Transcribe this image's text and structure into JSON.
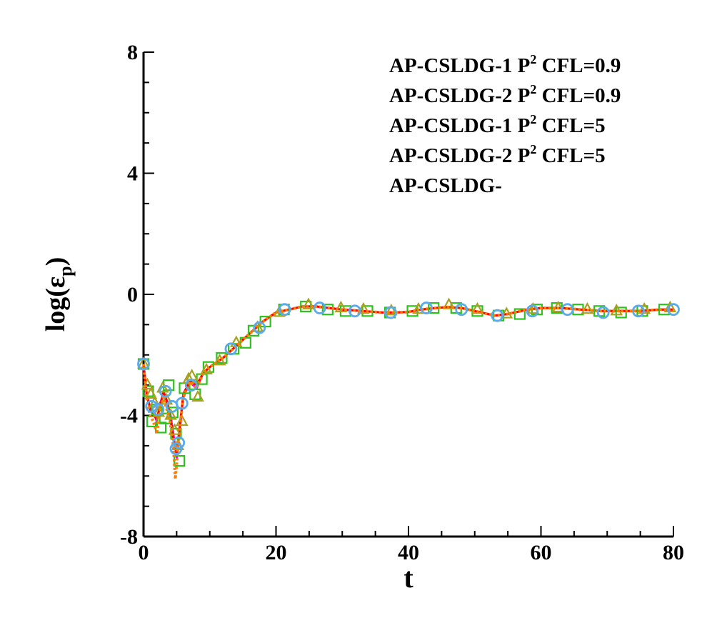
{
  "chart_data": {
    "type": "line",
    "xlabel": "t",
    "ylabel": "log(ε",
    "ylabel_sub": "p",
    "ylabel_close": ")",
    "xlim": [
      0,
      80
    ],
    "ylim": [
      -8,
      8
    ],
    "xticks": [
      0,
      20,
      40,
      60,
      80
    ],
    "xtick_labels": [
      "0",
      "20",
      "40",
      "60",
      "80"
    ],
    "yticks": [
      -8,
      -4,
      0,
      4,
      8
    ],
    "ytick_labels": [
      "-8",
      "-4",
      "0",
      "4",
      "8"
    ],
    "grid": false,
    "legend_position": "top-right",
    "series": [
      {
        "name": "AP-CSLDG-1 P2 CFL=0.9",
        "legend_parts": [
          "AP-CSLDG-1 P",
          "2",
          " CFL=0.9"
        ],
        "color": "#ff00ff",
        "style": "solid",
        "marker": "none",
        "x": [
          0,
          0.5,
          1,
          1.5,
          2,
          2.5,
          3,
          3.5,
          4,
          4.5,
          5,
          5.5,
          6,
          7,
          8,
          9,
          10,
          12,
          14,
          16,
          18,
          20,
          22,
          24,
          26,
          28,
          30,
          33,
          36,
          38,
          40,
          42,
          44,
          46,
          48,
          50,
          53,
          55,
          58,
          60,
          63,
          66,
          69,
          72,
          75,
          78,
          80
        ],
        "y": [
          -2.3,
          -3.4,
          -3.7,
          -3.9,
          -4.2,
          -3.6,
          -3.3,
          -3.6,
          -3.9,
          -4.6,
          -5.4,
          -4.4,
          -3.4,
          -2.9,
          -3.1,
          -2.6,
          -2.4,
          -2.1,
          -1.7,
          -1.3,
          -0.9,
          -0.6,
          -0.5,
          -0.4,
          -0.4,
          -0.45,
          -0.5,
          -0.55,
          -0.6,
          -0.6,
          -0.58,
          -0.5,
          -0.45,
          -0.42,
          -0.45,
          -0.55,
          -0.7,
          -0.65,
          -0.5,
          -0.45,
          -0.45,
          -0.5,
          -0.55,
          -0.55,
          -0.55,
          -0.5,
          -0.5
        ]
      },
      {
        "name": "AP-CSLDG-2 P2 CFL=0.9",
        "legend_parts": [
          "AP-CSLDG-2 P",
          "2",
          " CFL=0.9"
        ],
        "color": "#ff0000",
        "style": "solid",
        "marker": "none",
        "x": [
          0,
          0.5,
          1,
          1.5,
          2,
          2.5,
          3,
          3.5,
          4,
          4.5,
          5,
          5.5,
          6,
          7,
          8,
          9,
          10,
          12,
          14,
          16,
          18,
          20,
          22,
          24,
          26,
          28,
          30,
          33,
          36,
          38,
          40,
          42,
          44,
          46,
          48,
          50,
          53,
          55,
          58,
          60,
          63,
          66,
          69,
          72,
          75,
          78,
          80
        ],
        "y": [
          -2.3,
          -3.3,
          -3.8,
          -4.0,
          -4.1,
          -3.7,
          -3.2,
          -3.5,
          -4.0,
          -4.8,
          -5.2,
          -4.3,
          -3.3,
          -2.85,
          -3.0,
          -2.6,
          -2.4,
          -2.1,
          -1.7,
          -1.3,
          -0.9,
          -0.6,
          -0.5,
          -0.4,
          -0.4,
          -0.45,
          -0.5,
          -0.55,
          -0.6,
          -0.6,
          -0.58,
          -0.5,
          -0.45,
          -0.42,
          -0.45,
          -0.55,
          -0.7,
          -0.65,
          -0.5,
          -0.45,
          -0.45,
          -0.5,
          -0.55,
          -0.55,
          -0.55,
          -0.5,
          -0.5
        ]
      },
      {
        "name": "AP-CSLDG-1 P2 CFL=5",
        "legend_parts": [
          "AP-CSLDG-1 P",
          "2",
          " CFL=5"
        ],
        "color": "#2ec21e",
        "style": "none",
        "marker": "square",
        "x": [
          0,
          0.7,
          1.3,
          2,
          2.6,
          3.2,
          3.8,
          4.4,
          4.9,
          5.4,
          6.2,
          7.8,
          8.8,
          9.8,
          11.8,
          13.6,
          15.4,
          16.6,
          18.4,
          21.2,
          24.5,
          27.8,
          30.5,
          33.8,
          37.2,
          40.6,
          43.8,
          47.2,
          50.4,
          53.6,
          56.8,
          59.4,
          62.4,
          65.6,
          68.8,
          72.1,
          75.3,
          78.6
        ],
        "y": [
          -2.3,
          -3.2,
          -4.2,
          -3.8,
          -4.4,
          -4.1,
          -3.0,
          -3.9,
          -4.6,
          -5.5,
          -3.1,
          -3.3,
          -2.8,
          -2.4,
          -2.1,
          -1.8,
          -1.6,
          -1.2,
          -0.9,
          -0.5,
          -0.4,
          -0.5,
          -0.55,
          -0.55,
          -0.6,
          -0.55,
          -0.45,
          -0.45,
          -0.55,
          -0.7,
          -0.65,
          -0.5,
          -0.45,
          -0.5,
          -0.55,
          -0.6,
          -0.55,
          -0.5
        ]
      },
      {
        "name": "AP-CSLDG-2 P2 CFL=5",
        "legend_parts": [
          "AP-CSLDG-2 P",
          "2",
          " CFL=5"
        ],
        "color": "#a8a020",
        "style": "none",
        "marker": "triangle",
        "x": [
          0,
          0.6,
          1.1,
          1.7,
          2.3,
          2.9,
          3.5,
          4.1,
          4.7,
          5.2,
          5.8,
          6.8,
          7.3,
          8.2,
          9.5,
          11.5,
          14.0,
          17.2,
          20.5,
          24.9,
          29.8,
          33.2,
          37.4,
          41.5,
          46.1,
          50.4,
          54.8,
          58.8,
          62.6,
          67.0,
          71.4,
          75.6,
          79.5
        ],
        "y": [
          -2.3,
          -3.0,
          -3.3,
          -3.6,
          -3.9,
          -3.1,
          -3.5,
          -4.0,
          -4.5,
          -5.0,
          -4.2,
          -2.8,
          -2.7,
          -3.4,
          -2.5,
          -2.2,
          -1.6,
          -1.1,
          -0.6,
          -0.35,
          -0.45,
          -0.5,
          -0.55,
          -0.5,
          -0.35,
          -0.5,
          -0.65,
          -0.5,
          -0.45,
          -0.5,
          -0.55,
          -0.5,
          -0.45
        ]
      },
      {
        "name": "AP-CSLDG-",
        "legend_parts": [
          "AP-CSLDG-",
          "",
          ""
        ],
        "color": "#ff8000",
        "style": "dotted",
        "marker": "none",
        "x": [
          0,
          0.5,
          1,
          1.5,
          2,
          2.5,
          3,
          3.5,
          4,
          4.5,
          4.8,
          5,
          5.2,
          5.5,
          6,
          7,
          8,
          9,
          10,
          12,
          14,
          16,
          18,
          20,
          22,
          24,
          26,
          28,
          30,
          33,
          36,
          38,
          40,
          42,
          44,
          46,
          48,
          50,
          53,
          55,
          58,
          60,
          63,
          66,
          69,
          72,
          75,
          78,
          80
        ],
        "y": [
          -2.3,
          -3.5,
          -4.0,
          -4.2,
          -4.6,
          -3.8,
          -3.4,
          -3.8,
          -4.2,
          -5.0,
          -6.1,
          -5.6,
          -5.0,
          -4.4,
          -3.4,
          -2.9,
          -3.1,
          -2.6,
          -2.4,
          -2.1,
          -1.7,
          -1.3,
          -0.9,
          -0.6,
          -0.5,
          -0.4,
          -0.4,
          -0.45,
          -0.5,
          -0.55,
          -0.6,
          -0.6,
          -0.58,
          -0.5,
          -0.45,
          -0.42,
          -0.45,
          -0.55,
          -0.7,
          -0.65,
          -0.5,
          -0.45,
          -0.45,
          -0.5,
          -0.55,
          -0.55,
          -0.55,
          -0.5,
          -0.5
        ]
      },
      {
        "name": "",
        "color": "#5aaaee",
        "style": "none",
        "marker": "circle",
        "x": [
          0,
          1.2,
          2.2,
          3.3,
          4.3,
          4.9,
          5.3,
          5.8,
          7.2,
          13.2,
          17.5,
          21.3,
          26.6,
          31.9,
          37.3,
          42.7,
          48.0,
          53.4,
          58.7,
          64.0,
          69.4,
          74.7,
          80
        ],
        "y": [
          -2.3,
          -3.7,
          -3.8,
          -3.2,
          -3.7,
          -5.1,
          -4.9,
          -3.6,
          -3.0,
          -1.8,
          -1.1,
          -0.5,
          -0.45,
          -0.55,
          -0.6,
          -0.45,
          -0.5,
          -0.7,
          -0.55,
          -0.5,
          -0.6,
          -0.55,
          -0.5
        ]
      }
    ]
  }
}
